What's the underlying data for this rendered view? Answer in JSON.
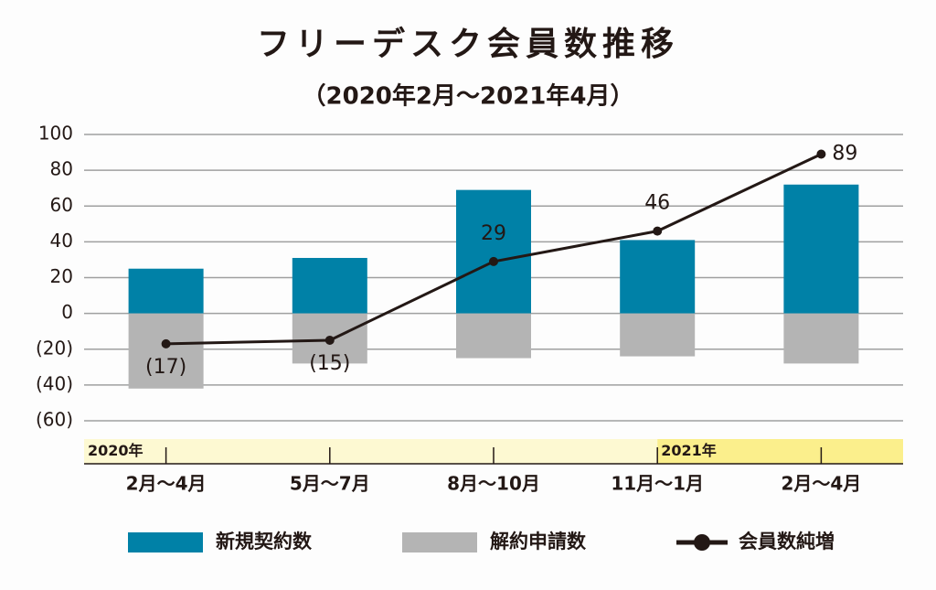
{
  "chart_data": {
    "type": "bar-line",
    "title": "フリーデスク会員数推移",
    "subtitle": "（2020年2月～2021年4月）",
    "categories": [
      "2月～4月",
      "5月～7月",
      "8月～10月",
      "11月～1月",
      "2月～4月"
    ],
    "year_labels": [
      "2020年",
      null,
      null,
      "2021年",
      null
    ],
    "series": [
      {
        "name": "新規契約数",
        "type": "bar",
        "color": "#0081a7",
        "values": [
          25,
          31,
          69,
          41,
          72
        ]
      },
      {
        "name": "解約申請数",
        "type": "bar",
        "color": "#b4b4b4",
        "values": [
          -42,
          -28,
          -25,
          -24,
          -28
        ]
      },
      {
        "name": "会員数純増",
        "type": "line",
        "color": "#231815",
        "values": [
          -17,
          -15,
          29,
          46,
          89
        ],
        "value_labels": [
          "(17)",
          "(15)",
          "29",
          "46",
          "89"
        ]
      }
    ],
    "ylim": [
      -60,
      100
    ],
    "yticks": [
      100,
      80,
      60,
      40,
      20,
      0,
      {
        "value": -20,
        "label": "(20)"
      },
      {
        "value": -40,
        "label": "(40)"
      },
      {
        "value": -60,
        "label": "(60)"
      }
    ],
    "grid": true
  }
}
